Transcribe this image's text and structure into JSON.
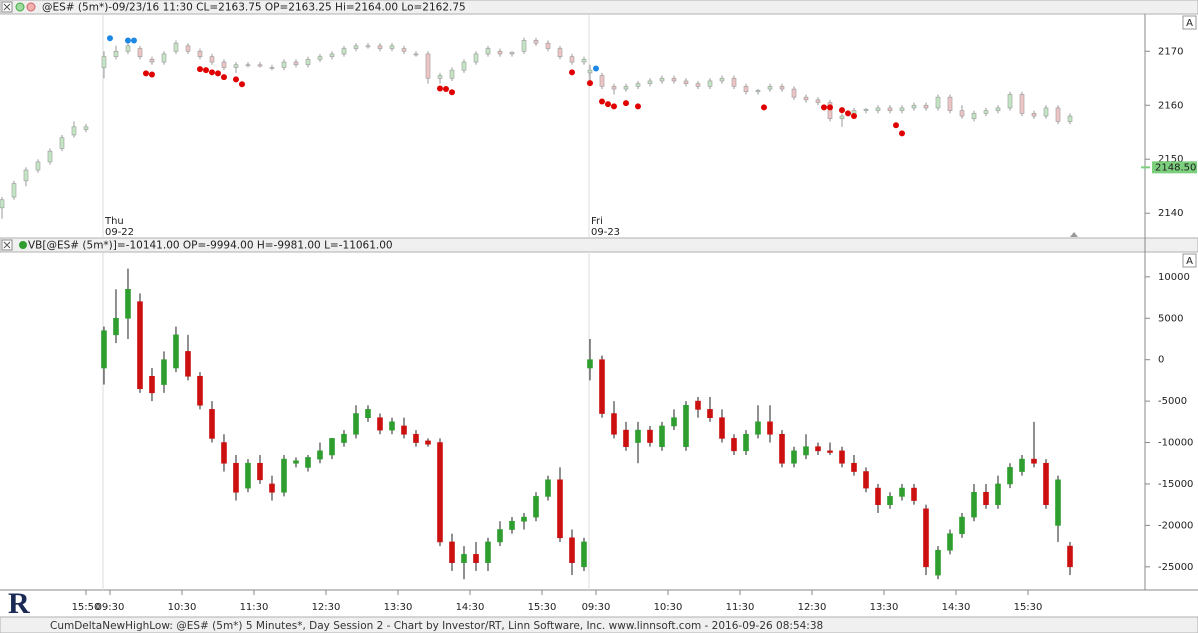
{
  "chart_data": [
    {
      "type": "candlestick",
      "title": "@ES# (5m*)-09/23/16 11:30 CL=2163.75 OP=2163.25 Hi=2164.00 Lo=2162.75",
      "xlim": [
        -0.33,
        190.5
      ],
      "ylim": [
        2135.6,
        2176.9
      ],
      "yticks": [
        2140,
        2150,
        2160,
        2170
      ],
      "up_color": "#c4e6c4",
      "down_color": "#eec4c4",
      "wick_color": "#999999",
      "x": [
        0,
        2,
        4,
        6,
        8,
        10,
        12,
        14,
        17,
        19,
        21,
        23,
        25,
        27,
        29,
        31,
        33,
        35,
        37,
        39,
        41,
        43,
        45,
        47,
        49,
        51,
        53,
        55,
        57,
        59,
        61,
        63,
        65,
        67,
        69,
        71,
        73,
        75,
        77,
        79,
        81,
        83,
        85,
        87,
        89,
        91,
        93,
        95,
        97,
        98,
        100,
        102,
        104,
        106,
        108,
        110,
        112,
        114,
        116,
        118,
        120,
        122,
        124,
        126,
        128,
        130,
        132,
        134,
        136,
        138,
        140,
        142,
        144,
        146,
        148,
        150,
        152,
        154,
        156,
        158,
        160,
        162,
        164,
        166,
        168,
        170,
        172,
        174,
        176,
        178
      ],
      "open": [
        2141,
        2143,
        2146,
        2148,
        2149.5,
        2152,
        2154.5,
        2155.5,
        2167,
        2169,
        2170,
        2170.5,
        2168.5,
        2168,
        2170,
        2171,
        2170,
        2169,
        2168,
        2167,
        2167.5,
        2167.5,
        2167,
        2167,
        2168,
        2167.5,
        2168.5,
        2169,
        2169.5,
        2170.5,
        2171,
        2171,
        2170.5,
        2170.5,
        2169.5,
        2169.5,
        2165,
        2165,
        2166.5,
        2168,
        2169.5,
        2170,
        2169.5,
        2170,
        2172,
        2171.5,
        2170.5,
        2169,
        2168,
        2166,
        2165.5,
        2163.5,
        2163,
        2163.5,
        2164,
        2164.5,
        2165,
        2164.5,
        2164,
        2163.5,
        2164.5,
        2165,
        2163.5,
        2162.5,
        2163,
        2163.5,
        2163,
        2161.5,
        2161,
        2160.5,
        2157.5,
        2158,
        2159,
        2159,
        2159.5,
        2159,
        2159.5,
        2160,
        2159.5,
        2161.5,
        2159,
        2157.5,
        2158.5,
        2159,
        2159.5,
        2162,
        2158.5,
        2158,
        2159.5,
        2157
      ],
      "high": [
        2143,
        2146,
        2148.5,
        2150,
        2152,
        2154.5,
        2157,
        2156.5,
        2170,
        2171,
        2172,
        2171,
        2169,
        2170,
        2172,
        2171.5,
        2170.5,
        2169.5,
        2168.5,
        2168,
        2168,
        2168,
        2167.5,
        2168.5,
        2168.5,
        2169,
        2169.5,
        2170,
        2171,
        2171.5,
        2171.5,
        2171.5,
        2171.5,
        2171,
        2170,
        2170,
        2166,
        2167,
        2168.5,
        2170,
        2171,
        2170.5,
        2170,
        2172.5,
        2172.5,
        2172,
        2171,
        2169.5,
        2169,
        2167.5,
        2166,
        2164,
        2164,
        2164.5,
        2165,
        2165.5,
        2165.5,
        2165,
        2164.5,
        2165,
        2165.5,
        2165.5,
        2164,
        2163,
        2164,
        2164,
        2163.5,
        2162,
        2161.5,
        2161,
        2158.5,
        2159.5,
        2159.5,
        2160,
        2160,
        2160,
        2160.5,
        2160.5,
        2162,
        2162,
        2160,
        2159,
        2159.5,
        2160,
        2162.5,
        2162.5,
        2159,
        2160,
        2160,
        2158.5
      ],
      "low": [
        2139,
        2142.5,
        2145,
        2147.5,
        2149,
        2151.5,
        2154,
        2155,
        2165,
        2168.5,
        2169.5,
        2168.5,
        2167.5,
        2167.5,
        2169.5,
        2169.5,
        2168.5,
        2167.5,
        2166.5,
        2166,
        2167,
        2167,
        2166.5,
        2166.5,
        2167,
        2167,
        2168,
        2168.5,
        2169,
        2170,
        2170.5,
        2170,
        2170,
        2169.5,
        2169,
        2164,
        2164,
        2164.5,
        2166,
        2167.5,
        2169,
        2169,
        2169,
        2169.5,
        2171,
        2170,
        2168.5,
        2167.5,
        2167.5,
        2164.5,
        2163,
        2162,
        2162.5,
        2163,
        2163.5,
        2164,
        2164,
        2163.5,
        2163,
        2163,
        2164,
        2163,
        2162,
        2162,
        2162.5,
        2162.5,
        2161,
        2160.5,
        2160,
        2157,
        2156,
        2157.5,
        2158.5,
        2158.5,
        2158.5,
        2158.5,
        2159,
        2159,
        2159,
        2158.5,
        2157.5,
        2157,
        2158,
        2158.5,
        2159,
        2158,
        2157.5,
        2157.5,
        2156.5,
        2156.5
      ],
      "close": [
        2142.5,
        2145.5,
        2148,
        2149.5,
        2151.5,
        2154,
        2156,
        2156,
        2169,
        2170,
        2171,
        2169,
        2168,
        2169.5,
        2171.5,
        2170,
        2169,
        2168,
        2167,
        2167.5,
        2167.5,
        2167.25,
        2167,
        2168,
        2167.5,
        2168.5,
        2169,
        2169.5,
        2170.5,
        2171,
        2171,
        2170.5,
        2171,
        2170,
        2169.5,
        2165,
        2165.5,
        2166.5,
        2168,
        2169.5,
        2170.5,
        2169.5,
        2169.8,
        2172,
        2171.5,
        2170.5,
        2169,
        2168,
        2168.5,
        2166.5,
        2163.5,
        2163,
        2163.5,
        2164,
        2164.5,
        2165,
        2164.5,
        2164,
        2163.5,
        2164.5,
        2165,
        2163.5,
        2162.5,
        2162.75,
        2163.5,
        2163,
        2161.5,
        2161,
        2160.5,
        2157.5,
        2158,
        2159,
        2159.25,
        2159.5,
        2159,
        2159.5,
        2160,
        2159.5,
        2161.5,
        2159,
        2158,
        2158.5,
        2159,
        2159.5,
        2162,
        2158.5,
        2158,
        2159.5,
        2157,
        2158
      ],
      "markers": [
        {
          "color": "#1e88e5",
          "x": [
            18,
            21,
            22,
            99
          ],
          "values": [
            2172.4,
            2172,
            2172,
            2166.8
          ]
        },
        {
          "color": "#e00000",
          "x": [
            24,
            25,
            33,
            34,
            35,
            36,
            37,
            39,
            40,
            73,
            74,
            75,
            95,
            98,
            100,
            101,
            102,
            104,
            106,
            127,
            137,
            138,
            140,
            141,
            142,
            149,
            150
          ],
          "values": [
            2165.9,
            2165.7,
            2166.7,
            2166.5,
            2166.1,
            2165.9,
            2165.2,
            2164.8,
            2163.9,
            2163.1,
            2163,
            2162.4,
            2166.1,
            2164.1,
            2160.7,
            2160.2,
            2159.8,
            2160.4,
            2159.8,
            2159.6,
            2159.6,
            2159.6,
            2159.1,
            2158.5,
            2158,
            2156.3,
            2154.8
          ]
        }
      ],
      "annotations": [
        {
          "x": 17,
          "lines": [
            "Thu",
            "09-22"
          ]
        },
        {
          "x": 98,
          "lines": [
            "Fri",
            "09-23"
          ]
        }
      ],
      "price_marker": {
        "value": 2148.5,
        "label": "2148.50",
        "color": "#7ccf7c"
      }
    },
    {
      "type": "candlestick",
      "title": "VB[@ES# (5m*)]=-10141.00 OP=-9994.00 H=-9981.00 L=-11061.00",
      "xlim": [
        -0.33,
        190.5
      ],
      "ylim": [
        -27800,
        13000
      ],
      "yticks": [
        10000,
        5000,
        0,
        -5000,
        -10000,
        -15000,
        -20000,
        -25000
      ],
      "xticks": [
        {
          "value": 14,
          "label": "15:50"
        },
        {
          "value": 18,
          "label": "09:30"
        },
        {
          "value": 30,
          "label": "10:30"
        },
        {
          "value": 42,
          "label": "11:30"
        },
        {
          "value": 54,
          "label": "12:30"
        },
        {
          "value": 66,
          "label": "13:30"
        },
        {
          "value": 78,
          "label": "14:30"
        },
        {
          "value": 90,
          "label": "15:30"
        },
        {
          "value": 99,
          "label": "09:30"
        },
        {
          "value": 111,
          "label": "10:30"
        },
        {
          "value": 123,
          "label": "11:30"
        },
        {
          "value": 135,
          "label": "12:30"
        },
        {
          "value": 147,
          "label": "13:30"
        },
        {
          "value": 159,
          "label": "14:30"
        },
        {
          "value": 171,
          "label": "15:30"
        }
      ],
      "up_color": "#2e9e2e",
      "down_color": "#cc1010",
      "wick_color": "#222222",
      "x": [
        17,
        19,
        21,
        23,
        25,
        27,
        29,
        31,
        33,
        35,
        37,
        39,
        41,
        43,
        45,
        47,
        49,
        51,
        53,
        55,
        57,
        59,
        61,
        63,
        65,
        67,
        69,
        71,
        73,
        75,
        77,
        79,
        81,
        83,
        85,
        87,
        89,
        91,
        93,
        95,
        97,
        98,
        100,
        102,
        104,
        106,
        108,
        110,
        112,
        114,
        116,
        118,
        120,
        122,
        124,
        126,
        128,
        130,
        132,
        134,
        136,
        138,
        140,
        142,
        144,
        146,
        148,
        150,
        152,
        154,
        156,
        158,
        160,
        162,
        164,
        166,
        168,
        170,
        172,
        174,
        176,
        178
      ],
      "open": [
        -1000,
        3000,
        5000,
        7000,
        -2000,
        -3000,
        -1000,
        1000,
        -2000,
        -6000,
        -10000,
        -12500,
        -15500,
        -12500,
        -15000,
        -16000,
        -12500,
        -13000,
        -12000,
        -11500,
        -10000,
        -9000,
        -7000,
        -7000,
        -8500,
        -8000,
        -9000,
        -9800,
        -10000,
        -22000,
        -24500,
        -23500,
        -24500,
        -22000,
        -20500,
        -19500,
        -19000,
        -16500,
        -14500,
        -21500,
        -25000,
        -1000,
        0,
        -6500,
        -8500,
        -10000,
        -8500,
        -10500,
        -8000,
        -10500,
        -5000,
        -6000,
        -7000,
        -9500,
        -11000,
        -9000,
        -7500,
        -9000,
        -12500,
        -11500,
        -10500,
        -11000,
        -11000,
        -12500,
        -13500,
        -15500,
        -17500,
        -16500,
        -15500,
        -18000,
        -26000,
        -23000,
        -21000,
        -19000,
        -16000,
        -17500,
        -15000,
        -13500,
        -12000,
        -12500,
        -20000,
        -22500
      ],
      "high": [
        4000,
        8500,
        11000,
        8000,
        -1000,
        1000,
        4000,
        3000,
        -1500,
        -5000,
        -9000,
        -11500,
        -12000,
        -11500,
        -14000,
        -11500,
        -11800,
        -11500,
        -10000,
        -9500,
        -8500,
        -5500,
        -5500,
        -6500,
        -7000,
        -7000,
        -8500,
        -9500,
        -9500,
        -21000,
        -22500,
        -22000,
        -21500,
        -19500,
        -19000,
        -18500,
        -16000,
        -14000,
        -13000,
        -20500,
        -21500,
        2500,
        500,
        -5000,
        -7500,
        -7500,
        -8000,
        -7500,
        -6000,
        -5000,
        -4500,
        -4500,
        -6000,
        -9000,
        -8500,
        -5500,
        -5500,
        -8500,
        -10500,
        -9000,
        -10000,
        -10000,
        -10500,
        -11500,
        -13000,
        -15000,
        -16000,
        -15000,
        -15000,
        -17500,
        -22500,
        -20500,
        -18500,
        -15000,
        -15000,
        -14000,
        -12500,
        -11500,
        -7500,
        -12000,
        -14000,
        -22000
      ],
      "low": [
        -3000,
        2000,
        2500,
        -4000,
        -5000,
        -4000,
        -1500,
        -2500,
        -6000,
        -10000,
        -13500,
        -17000,
        -16000,
        -15000,
        -17000,
        -16500,
        -13000,
        -13500,
        -12500,
        -12000,
        -10500,
        -9500,
        -7500,
        -9000,
        -9000,
        -9500,
        -10500,
        -10500,
        -22500,
        -25500,
        -26500,
        -25500,
        -25500,
        -22500,
        -21000,
        -20500,
        -19500,
        -17000,
        -22000,
        -26000,
        -25500,
        -2500,
        -7000,
        -9500,
        -11000,
        -12500,
        -10500,
        -11000,
        -8500,
        -11000,
        -7000,
        -7500,
        -10000,
        -11500,
        -11500,
        -9500,
        -10000,
        -13000,
        -13000,
        -12000,
        -11500,
        -11500,
        -13000,
        -14000,
        -16000,
        -18500,
        -18000,
        -17000,
        -17500,
        -26000,
        -26500,
        -23500,
        -21500,
        -19500,
        -18000,
        -18000,
        -15500,
        -14000,
        -13000,
        -18000,
        -22000,
        -26000
      ],
      "close": [
        3500,
        5000,
        8500,
        -3500,
        -4000,
        0,
        3000,
        -2000,
        -5500,
        -9500,
        -12500,
        -16000,
        -12500,
        -14500,
        -16000,
        -12000,
        -12200,
        -11800,
        -11000,
        -9500,
        -9000,
        -6500,
        -6000,
        -8500,
        -7500,
        -9000,
        -10000,
        -10200,
        -22000,
        -24500,
        -23500,
        -24500,
        -22000,
        -20500,
        -19500,
        -19000,
        -16500,
        -14500,
        -21500,
        -24500,
        -22000,
        0,
        -6500,
        -9000,
        -10500,
        -8500,
        -10000,
        -8000,
        -7000,
        -5500,
        -6000,
        -7000,
        -9500,
        -11000,
        -9000,
        -7500,
        -9000,
        -12500,
        -11000,
        -10500,
        -11000,
        -11200,
        -12500,
        -13500,
        -15500,
        -17500,
        -16500,
        -15500,
        -17000,
        -25000,
        -23000,
        -21000,
        -19000,
        -16000,
        -17500,
        -15000,
        -13000,
        -12000,
        -12500,
        -17500,
        -14500,
        -25000
      ]
    }
  ],
  "logo": "R",
  "footer": "CumDeltaNewHighLow: @ES# (5m*) 5 Minutes*, Day Session 2 - Chart by Investor/RT, Linn Software, Inc. www.linnsoft.com - 2016-09-26 08:54:38"
}
